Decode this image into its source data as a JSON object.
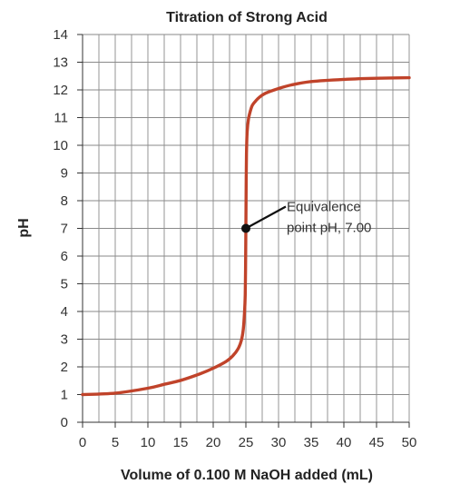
{
  "chart_data": {
    "type": "line",
    "title": "Titration of Strong Acid",
    "xlabel": "Volume of 0.100 M NaOH added (mL)",
    "ylabel": "pH",
    "xlim": [
      0,
      50
    ],
    "ylim": [
      0,
      14
    ],
    "xticks": [
      0,
      5,
      10,
      15,
      20,
      25,
      30,
      35,
      40,
      45,
      50
    ],
    "yticks": [
      0,
      1,
      2,
      3,
      4,
      5,
      6,
      7,
      8,
      9,
      10,
      11,
      12,
      13,
      14
    ],
    "grid": true,
    "series": [
      {
        "color": "#c0432a",
        "x": [
          0,
          5,
          10,
          12.5,
          15,
          18,
          20,
          22,
          23,
          23.8,
          24.3,
          24.6,
          24.8,
          24.9,
          24.95,
          25,
          25.05,
          25.1,
          25.2,
          25.4,
          25.7,
          26,
          26.5,
          27,
          28,
          30,
          32,
          35,
          40,
          45,
          50
        ],
        "y": [
          1.0,
          1.05,
          1.23,
          1.37,
          1.51,
          1.75,
          1.95,
          2.2,
          2.4,
          2.65,
          2.95,
          3.35,
          4.0,
          4.6,
          5.5,
          7.0,
          8.8,
          9.8,
          10.5,
          10.95,
          11.25,
          11.45,
          11.6,
          11.72,
          11.88,
          12.05,
          12.18,
          12.3,
          12.38,
          12.42,
          12.44
        ]
      }
    ],
    "annotations": [
      {
        "line1": "Equivalence",
        "line2": "point pH, 7.00",
        "x": 25,
        "y": 7.0
      }
    ]
  }
}
